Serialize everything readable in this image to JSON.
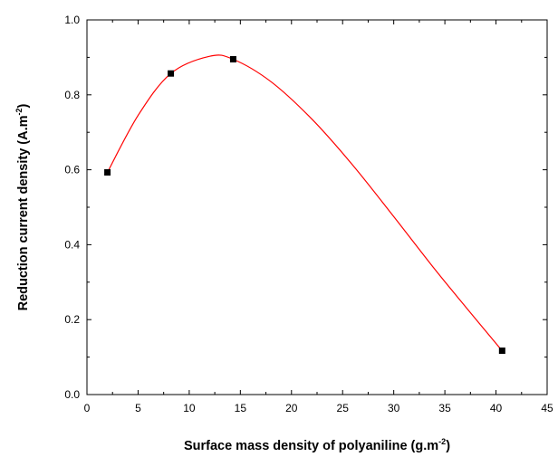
{
  "chart_data": {
    "type": "scatter",
    "xlabel": "Surface mass density of polyaniline (g.m",
    "xlabel_sup": "-2",
    "xlabel_end": ")",
    "ylabel": "Reduction current density (A.m",
    "ylabel_sup": "-2",
    "ylabel_end": ")",
    "xlim": [
      0,
      45
    ],
    "ylim": [
      0.0,
      1.0
    ],
    "x_ticks": [
      "0",
      "5",
      "10",
      "15",
      "20",
      "25",
      "30",
      "35",
      "40",
      "45"
    ],
    "y_ticks": [
      "0.0",
      "0.2",
      "0.4",
      "0.6",
      "0.8",
      "1.0"
    ],
    "grid": false,
    "series": [
      {
        "points": [
          {
            "x": 2.0,
            "y": 0.593
          },
          {
            "x": 8.2,
            "y": 0.857
          },
          {
            "x": 14.3,
            "y": 0.895
          },
          {
            "x": 40.6,
            "y": 0.117
          }
        ],
        "marker": "square",
        "marker_color": "#000000"
      }
    ],
    "fit_curve": {
      "color": "#ff0000",
      "points": [
        {
          "x": 2.0,
          "y": 0.593
        },
        {
          "x": 5.0,
          "y": 0.745
        },
        {
          "x": 8.2,
          "y": 0.857
        },
        {
          "x": 12.0,
          "y": 0.903
        },
        {
          "x": 14.3,
          "y": 0.895
        },
        {
          "x": 18.0,
          "y": 0.835
        },
        {
          "x": 22.0,
          "y": 0.735
        },
        {
          "x": 26.0,
          "y": 0.612
        },
        {
          "x": 30.0,
          "y": 0.475
        },
        {
          "x": 34.0,
          "y": 0.335
        },
        {
          "x": 37.0,
          "y": 0.235
        },
        {
          "x": 40.6,
          "y": 0.117
        }
      ]
    }
  }
}
